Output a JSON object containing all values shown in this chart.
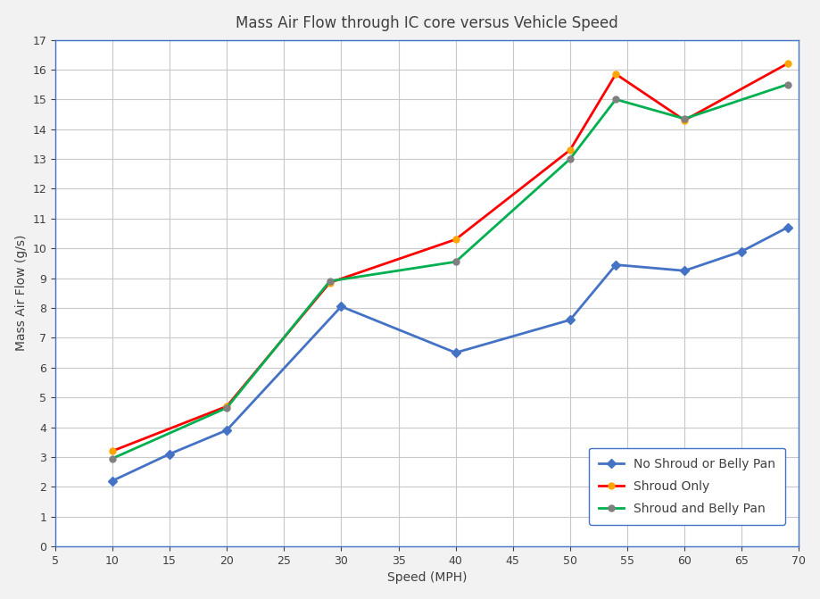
{
  "title": "Mass Air Flow through IC core versus Vehicle Speed",
  "xlabel": "Speed (MPH)",
  "ylabel": "Mass Air Flow (g/s)",
  "xlim": [
    5,
    70
  ],
  "ylim": [
    0,
    17
  ],
  "xticks": [
    5,
    10,
    15,
    20,
    25,
    30,
    35,
    40,
    45,
    50,
    55,
    60,
    65,
    70
  ],
  "yticks": [
    0,
    1,
    2,
    3,
    4,
    5,
    6,
    7,
    8,
    9,
    10,
    11,
    12,
    13,
    14,
    15,
    16,
    17
  ],
  "series": [
    {
      "label": "No Shroud or Belly Pan",
      "line_color": "#4472C4",
      "marker_color": "#4472C4",
      "marker": "D",
      "markersize": 5,
      "x": [
        10,
        15,
        20,
        30,
        40,
        50,
        54,
        60,
        65,
        69
      ],
      "y": [
        2.2,
        3.1,
        3.9,
        8.05,
        6.5,
        7.6,
        9.45,
        9.25,
        9.9,
        10.7
      ]
    },
    {
      "label": "Shroud Only",
      "line_color": "#FF0000",
      "marker_color": "#FFA500",
      "marker": "o",
      "markersize": 5,
      "x": [
        10,
        20,
        29,
        40,
        50,
        54,
        60,
        69
      ],
      "y": [
        3.2,
        4.7,
        8.85,
        10.3,
        13.3,
        15.85,
        14.3,
        16.2
      ]
    },
    {
      "label": "Shroud and Belly Pan",
      "line_color": "#00B050",
      "marker_color": "#808080",
      "marker": "o",
      "markersize": 5,
      "x": [
        10,
        20,
        29,
        40,
        50,
        54,
        60,
        69
      ],
      "y": [
        2.95,
        4.65,
        8.9,
        9.55,
        13.0,
        15.0,
        14.35,
        15.5
      ]
    }
  ],
  "legend_loc": "lower right",
  "figure_bg_color": "#F2F2F2",
  "plot_bg_color": "#FFFFFF",
  "grid_color": "#C8C8C8",
  "border_color": "#4472C4",
  "title_fontsize": 12,
  "label_fontsize": 10,
  "tick_fontsize": 9,
  "legend_fontsize": 10,
  "linewidth": 2.0
}
